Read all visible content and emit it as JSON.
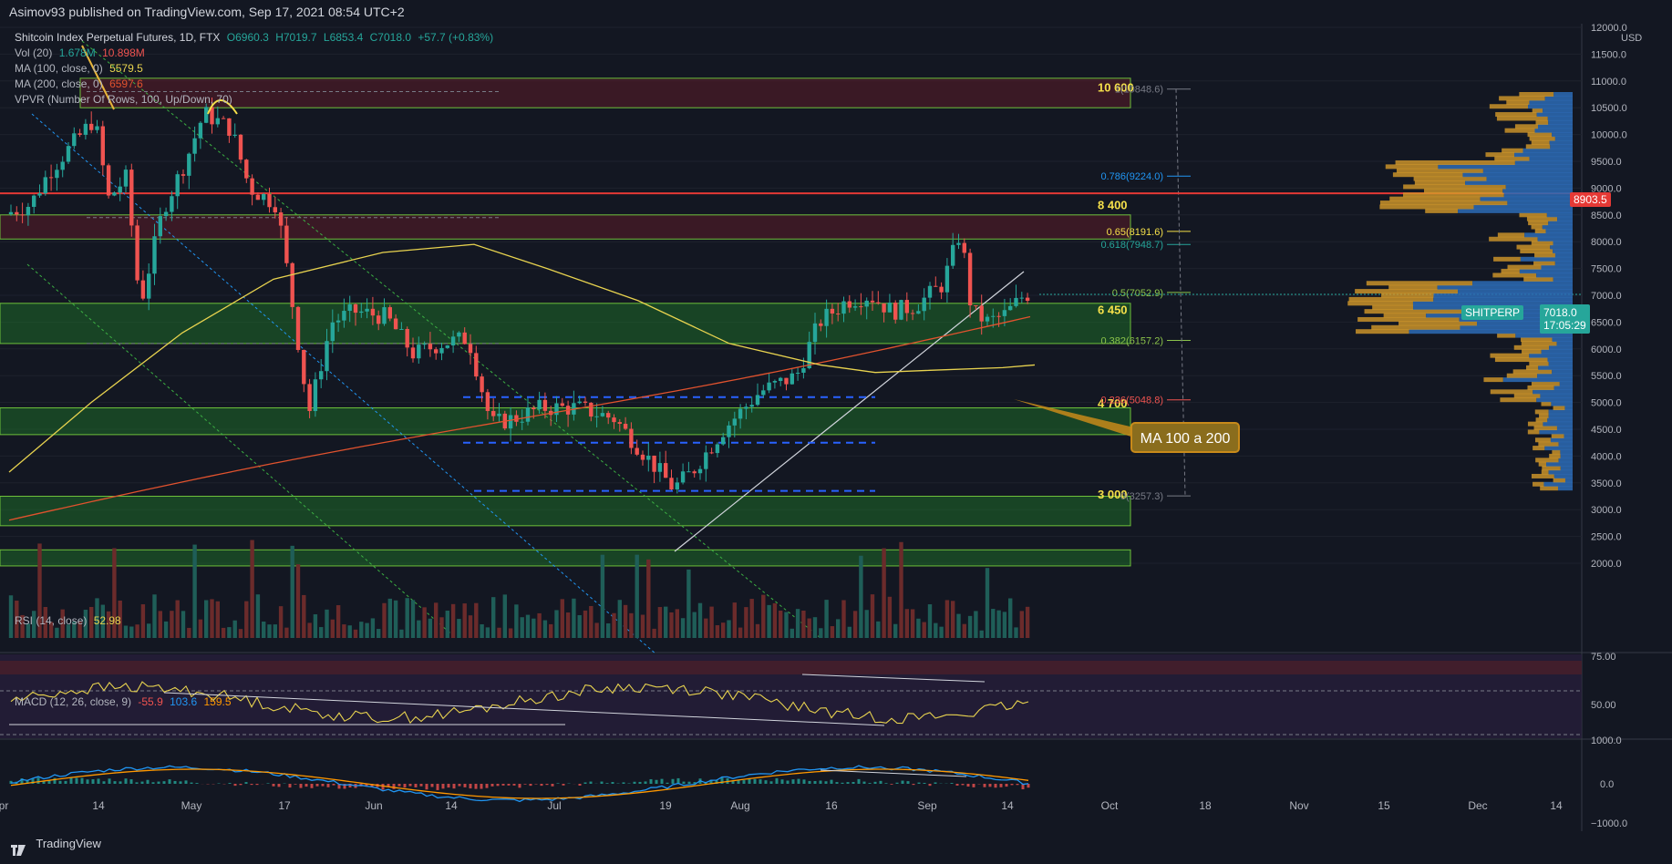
{
  "header": {
    "published": "Asimov93 published on TradingView.com, Sep 17, 2021 08:54 UTC+2"
  },
  "legend": {
    "symbol": "Shitcoin Index Perpetual Futures, 1D, FTX",
    "open": "O6960.3",
    "high": "H7019.7",
    "low": "L6853.4",
    "close": "C7018.0",
    "change": "+57.7 (+0.83%)",
    "vol_label": "Vol (20)",
    "vol_val1": "1.678M",
    "vol_val2": "10.898M",
    "ma100_label": "MA (100, close, 0)",
    "ma100_val": "5579.5",
    "ma200_label": "MA (200, close, 0)",
    "ma200_val": "6597.6",
    "vpvr_label": "VPVR (Number Of Rows, 100, Up/Down, 70)"
  },
  "price_axis": {
    "ticks": [
      "12000.0",
      "11500.0",
      "11000.0",
      "10500.0",
      "10000.0",
      "9500.0",
      "9000.0",
      "8500.0",
      "8000.0",
      "7500.0",
      "7000.0",
      "6500.0",
      "6000.0",
      "5500.0",
      "5000.0",
      "4500.0",
      "4000.0",
      "3500.0",
      "3000.0",
      "2500.0",
      "2000.0"
    ],
    "currency": "USD",
    "red_line_label": "8903.5",
    "last_price_label": "7018.0",
    "countdown": "17:05:29",
    "symbol_tag": "SHITPERP"
  },
  "time_axis": [
    "Apr",
    "14",
    "May",
    "17",
    "Jun",
    "14",
    "Jul",
    "19",
    "Aug",
    "16",
    "Sep",
    "14",
    "Oct",
    "18",
    "Nov",
    "15",
    "Dec",
    "14"
  ],
  "zones": {
    "labels": [
      "10 600",
      "8 400",
      "6 450",
      "4 700",
      "3 000"
    ]
  },
  "fib": {
    "levels": [
      "1(10848.6)",
      "0.786(9224.0)",
      "0.65(8191.6)",
      "0.618(7948.7)",
      "0.5(7052.9)",
      "0.382(6157.2)",
      "0.236(5048.8)",
      "0(3257.3)"
    ]
  },
  "annotation": {
    "text": "MA 100 a 200"
  },
  "rsi": {
    "label": "RSI (14, close)",
    "value": "52.98",
    "ticks": [
      "75.00",
      "50.00"
    ]
  },
  "macd": {
    "label": "MACD (12, 26, close, 9)",
    "v1": "-55.9",
    "v2": "103.6",
    "v3": "159.5",
    "ticks": [
      "1000.0",
      "0.0",
      "−1000.0"
    ]
  },
  "footer": {
    "brand": "TradingView"
  },
  "colors": {
    "background": "#131722",
    "up": "#26a69a",
    "down": "#ef5350",
    "ma100": "#e8d34f",
    "ma200": "#e0522e",
    "zone_green": "#1e7d2a",
    "zone_red": "#6b1d2b",
    "vpvr_up": "#2d6bb5",
    "vpvr_down": "#d49a2b",
    "rsi_band": "#2a1f3d"
  },
  "chart_data": {
    "type": "candlestick",
    "title": "Shitcoin Index Perpetual Futures, 1D, FTX",
    "ylim": [
      1500,
      12000
    ],
    "price_scale": "linear",
    "key_levels": [
      10600,
      8400,
      6450,
      4700,
      3000
    ],
    "fib_retracement": {
      "0": 3257.3,
      "0.236": 5048.8,
      "0.382": 6157.2,
      "0.5": 7052.9,
      "0.618": 7948.7,
      "0.65": 8191.6,
      "0.786": 9224.0,
      "1": 10848.6
    },
    "last": {
      "open": 6960.3,
      "high": 7019.7,
      "low": 6853.4,
      "close": 7018.0
    },
    "ma100_last": 5579.5,
    "ma200_last": 6597.6,
    "red_line": 8903.5,
    "rsi_last": 52.98,
    "macd_last": {
      "hist": -55.9,
      "macd": 103.6,
      "signal": 159.5
    }
  }
}
